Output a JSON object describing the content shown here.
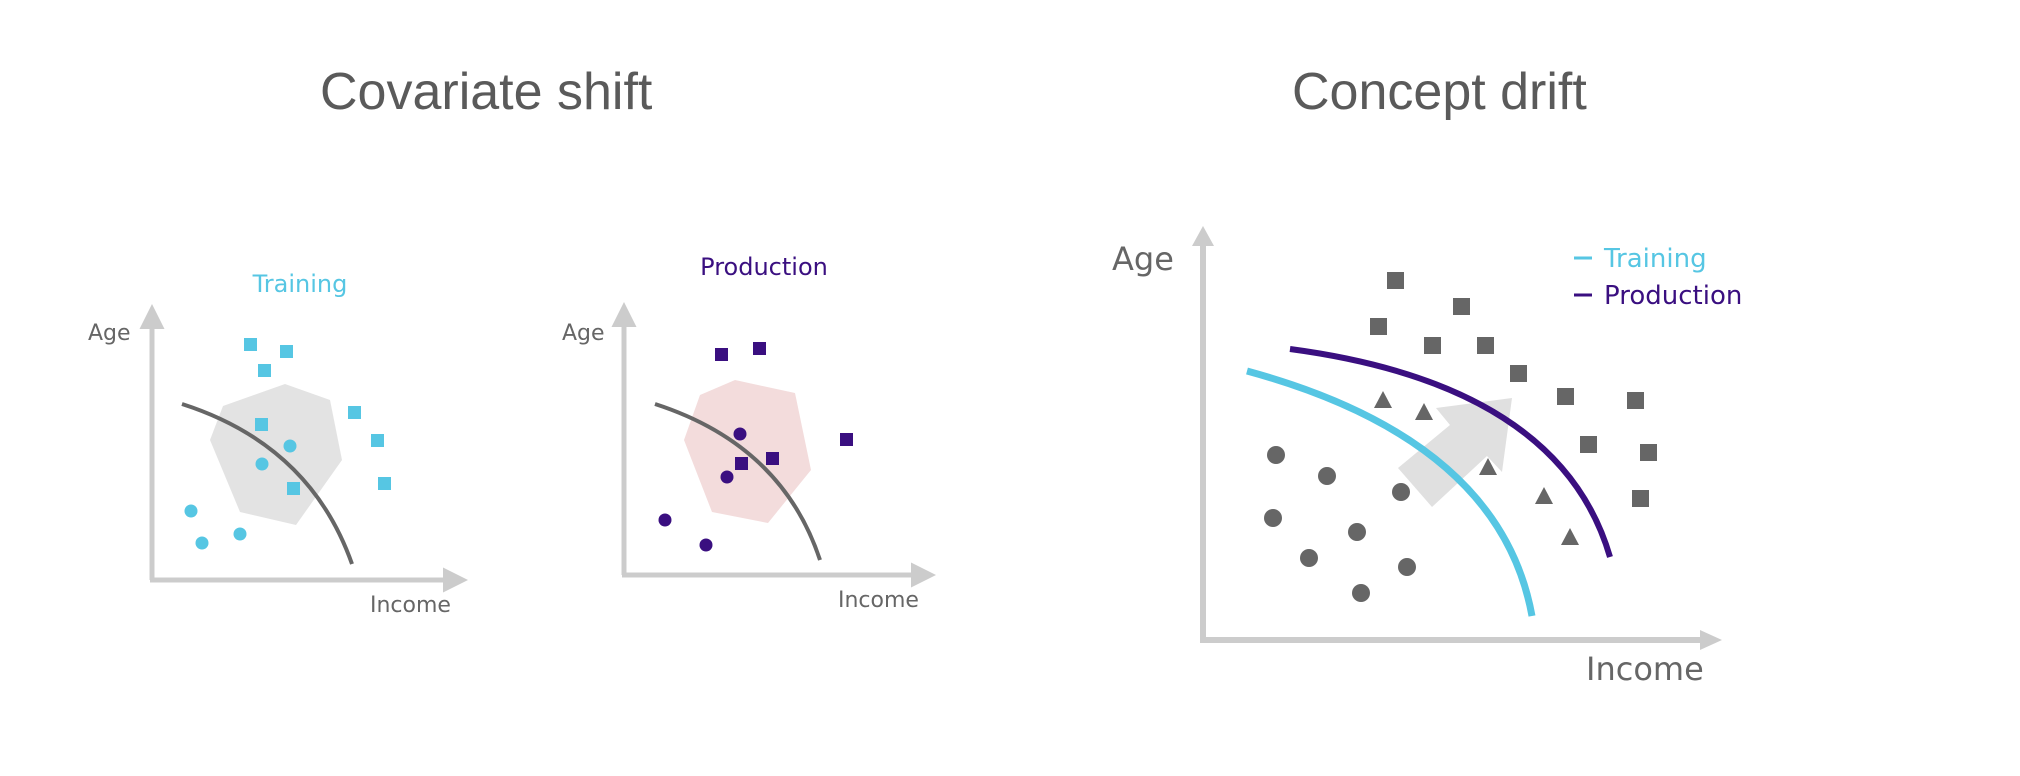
{
  "titles": {
    "covariate_shift": "Covariate shift",
    "concept_drift": "Concept drift"
  },
  "panels": {
    "training": {
      "label": "Training",
      "x_axis": "Income",
      "y_axis": "Age"
    },
    "production": {
      "label": "Production",
      "x_axis": "Income",
      "y_axis": "Age"
    },
    "concept": {
      "x_axis": "Income",
      "y_axis": "Age"
    }
  },
  "legend": {
    "items": [
      {
        "label": "Training",
        "color": "#56c6e3"
      },
      {
        "label": "Production",
        "color": "#3a0f80"
      }
    ]
  },
  "colors": {
    "training": "#56c6e3",
    "production": "#3a0f80",
    "axis": "#cccccc",
    "boundary": "#666666",
    "points": "#666666",
    "hull_training": "#e3e3e3",
    "hull_production": "#f3dcdc",
    "arrow": "#e0e0e0"
  }
}
